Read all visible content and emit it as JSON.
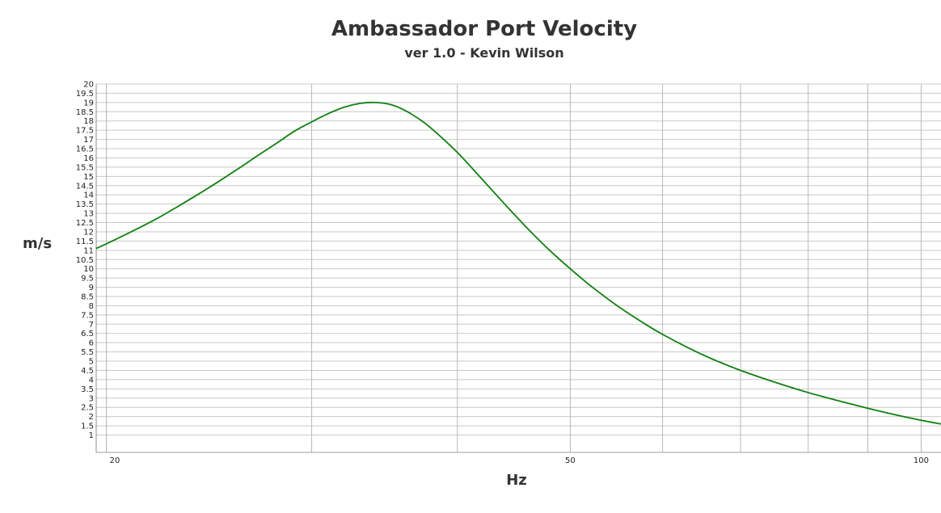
{
  "chart_data": {
    "type": "line",
    "title": "Ambassador Port Velocity",
    "subtitle": "ver 1.0 - Kevin Wilson",
    "xlabel": "Hz",
    "ylabel": "m/s",
    "x_scale": "log",
    "xlim": [
      19.6,
      104
    ],
    "ylim": [
      0,
      20
    ],
    "x_tick_labels": [
      "20",
      "50",
      "100"
    ],
    "y_tick_labels": [
      "20",
      "19.5",
      "19",
      "18.5",
      "18",
      "17.5",
      "17",
      "16.5",
      "16",
      "15.5",
      "15",
      "14.5",
      "14",
      "13.5",
      "13",
      "12.5",
      "12",
      "11.5",
      "11",
      "10.5",
      "10",
      "9.5",
      "9",
      "8.5",
      "8",
      "7.5",
      "7",
      "6.5",
      "6",
      "5.5",
      "5",
      "4.5",
      "4",
      "3.5",
      "3",
      "2.5",
      "2",
      "1.5",
      "1"
    ],
    "grid": true,
    "legend": "none",
    "series": [
      {
        "color": "#118011",
        "x": [
          19.6,
          20,
          21,
          22,
          23,
          24,
          25,
          26,
          27,
          28,
          29,
          30,
          31,
          32,
          33,
          34,
          35,
          36,
          37,
          38,
          40,
          42,
          44,
          46,
          48,
          50,
          52,
          55,
          58,
          60,
          63,
          66,
          70,
          75,
          80,
          85,
          90,
          95,
          100,
          104
        ],
        "y": [
          11.1,
          11.35,
          12.0,
          12.65,
          13.35,
          14.05,
          14.75,
          15.45,
          16.15,
          16.8,
          17.45,
          17.95,
          18.4,
          18.75,
          18.95,
          19.0,
          18.9,
          18.6,
          18.15,
          17.6,
          16.3,
          14.85,
          13.45,
          12.15,
          11.0,
          10.0,
          9.1,
          7.95,
          7.0,
          6.45,
          5.75,
          5.15,
          4.5,
          3.85,
          3.3,
          2.85,
          2.45,
          2.1,
          1.8,
          1.6
        ]
      }
    ]
  }
}
